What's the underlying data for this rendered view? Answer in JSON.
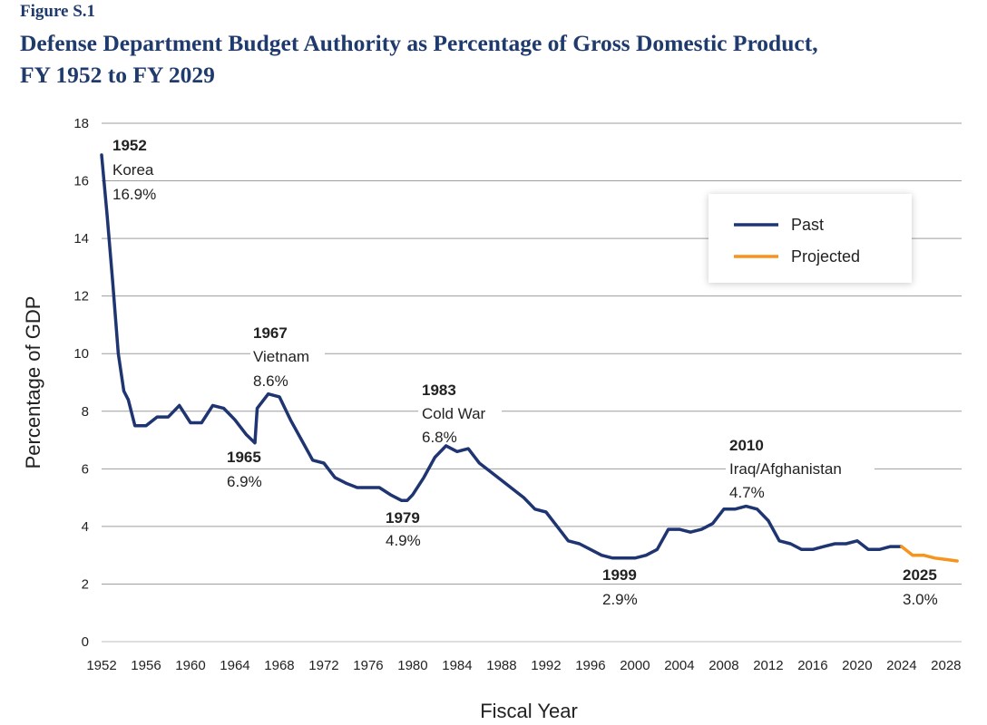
{
  "figure": {
    "label": "Figure S.1",
    "title_line1": "Defense Department Budget Authority as Percentage of Gross Domestic Product,",
    "title_line2": "FY 1952 to FY 2029"
  },
  "chart_data": {
    "type": "line",
    "title": "Defense Department Budget Authority as Percentage of Gross Domestic Product, FY 1952 to FY 2029",
    "xlabel": "Fiscal Year",
    "ylabel": "Percentage of GDP",
    "xlim": [
      1952,
      2029
    ],
    "ylim": [
      0,
      18
    ],
    "grid": true,
    "legend_position": "top-right",
    "x_ticks": [
      "1952",
      "1956",
      "1960",
      "1964",
      "1968",
      "1972",
      "1976",
      "1980",
      "1984",
      "1988",
      "1992",
      "1996",
      "2000",
      "2004",
      "2008",
      "2012",
      "2016",
      "2020",
      "2024",
      "2028"
    ],
    "x_tick_values": [
      1952,
      1956,
      1960,
      1964,
      1968,
      1972,
      1976,
      1980,
      1984,
      1988,
      1992,
      1996,
      2000,
      2004,
      2008,
      2012,
      2016,
      2020,
      2024,
      2028
    ],
    "y_ticks": [
      "0",
      "2",
      "4",
      "6",
      "8",
      "10",
      "12",
      "14",
      "16",
      "18"
    ],
    "y_tick_values": [
      0,
      2,
      4,
      6,
      8,
      10,
      12,
      14,
      16,
      18
    ],
    "series": [
      {
        "name": "Past",
        "color": "#1f3572",
        "x": [
          1952,
          1952.5,
          1953,
          1953.5,
          1954,
          1954.4,
          1955,
          1956,
          1957,
          1958,
          1959,
          1960,
          1961,
          1962,
          1963,
          1963.5,
          1964,
          1965,
          1965.8,
          1966,
          1967,
          1968,
          1969,
          1970,
          1971,
          1972,
          1973,
          1974,
          1975,
          1976,
          1977,
          1978,
          1979,
          1979.5,
          1980,
          1981,
          1982,
          1983,
          1984,
          1985,
          1986,
          1987,
          1988,
          1989,
          1990,
          1991,
          1992,
          1993,
          1994,
          1995,
          1996,
          1997,
          1998,
          1999,
          2000,
          2001,
          2002,
          2003,
          2004,
          2005,
          2006,
          2007,
          2008,
          2009,
          2010,
          2011,
          2012,
          2013,
          2014,
          2015,
          2016,
          2017,
          2018,
          2019,
          2020,
          2021,
          2022,
          2023,
          2024
        ],
        "y": [
          16.9,
          14.8,
          12.5,
          10.0,
          8.7,
          8.4,
          7.5,
          7.5,
          7.8,
          7.8,
          8.2,
          7.6,
          7.6,
          8.2,
          8.1,
          7.9,
          7.7,
          7.2,
          6.9,
          8.1,
          8.6,
          8.5,
          7.7,
          7.0,
          6.3,
          6.2,
          5.7,
          5.5,
          5.35,
          5.35,
          5.35,
          5.1,
          4.9,
          4.9,
          5.1,
          5.7,
          6.4,
          6.8,
          6.6,
          6.7,
          6.2,
          5.9,
          5.6,
          5.3,
          5.0,
          4.6,
          4.5,
          4.0,
          3.5,
          3.4,
          3.2,
          3.0,
          2.9,
          2.9,
          2.9,
          3.0,
          3.2,
          3.9,
          3.9,
          3.8,
          3.9,
          4.1,
          4.6,
          4.6,
          4.7,
          4.6,
          4.2,
          3.5,
          3.4,
          3.2,
          3.2,
          3.3,
          3.4,
          3.4,
          3.5,
          3.2,
          3.2,
          3.3,
          3.3
        ]
      },
      {
        "name": "Projected",
        "color": "#f7941d",
        "x": [
          2024,
          2025,
          2026,
          2027,
          2028,
          2029
        ],
        "y": [
          3.3,
          3.0,
          3.0,
          2.9,
          2.85,
          2.8
        ]
      }
    ],
    "annotations": [
      {
        "year_label": "1952",
        "event": "Korea",
        "value": "16.9%"
      },
      {
        "year_label": "1967",
        "event": "Vietnam",
        "value": "8.6%"
      },
      {
        "year_label": "1965",
        "value": "6.9%"
      },
      {
        "year_label": "1983",
        "event": "Cold War",
        "value": "6.8%"
      },
      {
        "year_label": "1979",
        "value": "4.9%"
      },
      {
        "year_label": "2010",
        "event": "Iraq/Afghanistan",
        "value": "4.7%"
      },
      {
        "year_label": "1999",
        "value": "2.9%"
      },
      {
        "year_label": "2025",
        "value": "3.0%"
      }
    ]
  }
}
